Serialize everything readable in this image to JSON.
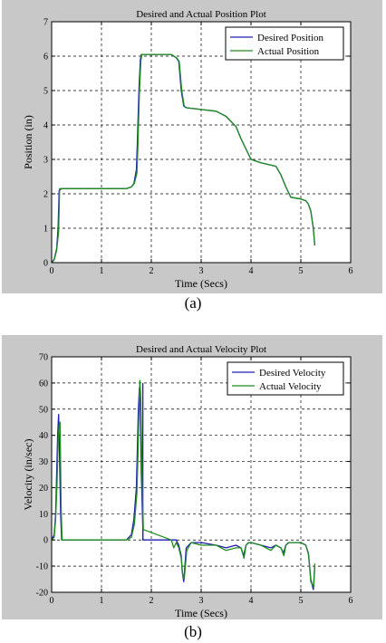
{
  "chart_data": [
    {
      "type": "line",
      "title": "Desired and Actual Position Plot",
      "xlabel": "Time (Secs)",
      "ylabel": "Position (in)",
      "xlim": [
        0,
        6
      ],
      "ylim": [
        0,
        7
      ],
      "xticks": [
        "0",
        "1",
        "2",
        "3",
        "4",
        "5",
        "6"
      ],
      "yticks": [
        "0",
        "1",
        "2",
        "3",
        "4",
        "5",
        "6",
        "7"
      ],
      "grid": true,
      "legend_position": "top-right",
      "series": [
        {
          "name": "Desired Position",
          "color": "#1f1fb4",
          "x": [
            0,
            0.05,
            0.1,
            0.13,
            0.15,
            0.2,
            1.5,
            1.6,
            1.65,
            1.7,
            1.72,
            1.75,
            1.78,
            1.8,
            2.0,
            2.4,
            2.5,
            2.55,
            2.6,
            2.65,
            2.7,
            3.0,
            3.3,
            3.5,
            3.7,
            3.8,
            3.9,
            4.0,
            4.2,
            4.5,
            4.6,
            4.7,
            4.8,
            5.0,
            5.1,
            5.15,
            5.2,
            5.25,
            5.28
          ],
          "y": [
            0,
            0.1,
            0.4,
            1.0,
            2.1,
            2.15,
            2.15,
            2.2,
            2.3,
            2.7,
            3.5,
            5.0,
            5.9,
            6.05,
            6.05,
            6.05,
            5.95,
            5.85,
            5.0,
            4.55,
            4.5,
            4.45,
            4.4,
            4.25,
            3.95,
            3.6,
            3.3,
            3.0,
            2.9,
            2.8,
            2.55,
            2.2,
            1.9,
            1.85,
            1.8,
            1.7,
            1.5,
            1.0,
            0.5
          ]
        },
        {
          "name": "Actual Position",
          "color": "#1f8c1f",
          "x": [
            0,
            0.05,
            0.1,
            0.14,
            0.16,
            0.2,
            1.5,
            1.6,
            1.66,
            1.71,
            1.73,
            1.76,
            1.79,
            1.81,
            2.0,
            2.4,
            2.51,
            2.56,
            2.61,
            2.66,
            2.71,
            3.0,
            3.3,
            3.5,
            3.7,
            3.8,
            3.9,
            4.0,
            4.2,
            4.5,
            4.6,
            4.7,
            4.8,
            5.0,
            5.1,
            5.15,
            5.2,
            5.25,
            5.28
          ],
          "y": [
            0,
            0.08,
            0.35,
            0.9,
            2.15,
            2.15,
            2.15,
            2.2,
            2.3,
            2.6,
            3.4,
            4.9,
            5.85,
            6.05,
            6.05,
            6.05,
            5.95,
            5.85,
            5.0,
            4.55,
            4.5,
            4.45,
            4.4,
            4.25,
            3.95,
            3.6,
            3.3,
            3.0,
            2.9,
            2.8,
            2.55,
            2.2,
            1.9,
            1.85,
            1.8,
            1.7,
            1.5,
            1.0,
            0.5
          ]
        }
      ]
    },
    {
      "type": "line",
      "title": "Desired and Actual Velocity Plot",
      "xlabel": "Time (Secs)",
      "ylabel": "Velocity (in/sec)",
      "xlim": [
        0,
        6
      ],
      "ylim": [
        -20,
        70
      ],
      "xticks": [
        "0",
        "1",
        "2",
        "3",
        "4",
        "5",
        "6"
      ],
      "yticks": [
        "-20",
        "-10",
        "0",
        "10",
        "20",
        "30",
        "40",
        "50",
        "60",
        "70"
      ],
      "grid": true,
      "legend_position": "top-right",
      "series": [
        {
          "name": "Desired Velocity",
          "color": "#1f1fb4",
          "x": [
            0,
            0.05,
            0.08,
            0.1,
            0.12,
            0.14,
            0.16,
            0.18,
            0.2,
            1.5,
            1.6,
            1.65,
            1.7,
            1.72,
            1.74,
            1.76,
            1.78,
            1.8,
            1.83,
            1.83,
            2.5,
            2.55,
            2.6,
            2.62,
            2.65,
            2.7,
            2.8,
            3.0,
            3.3,
            3.5,
            3.7,
            3.8,
            3.85,
            3.9,
            3.95,
            4.0,
            4.2,
            4.4,
            4.5,
            4.6,
            4.65,
            4.7,
            4.75,
            4.8,
            5.0,
            5.1,
            5.15,
            5.2,
            5.25,
            5.28
          ],
          "y": [
            0,
            2,
            10,
            25,
            40,
            48,
            30,
            10,
            0,
            0,
            2,
            8,
            20,
            35,
            50,
            58,
            50,
            25,
            5,
            0,
            0,
            -2,
            -6,
            -12,
            -16,
            -3,
            -1,
            -1,
            -2,
            -3,
            -2,
            -3,
            -6,
            -2,
            -1,
            -1,
            -2,
            -3,
            -2,
            -3,
            -5,
            -2,
            -1,
            -1,
            -1,
            -2,
            -5,
            -15,
            -19,
            -10
          ],
          "extra_vertical": {
            "x": 1.83,
            "from": 0,
            "to": 60
          }
        },
        {
          "name": "Actual Velocity",
          "color": "#1f8c1f",
          "x": [
            0,
            0.05,
            0.08,
            0.11,
            0.13,
            0.15,
            0.17,
            0.19,
            0.21,
            1.5,
            1.6,
            1.66,
            1.71,
            1.73,
            1.75,
            1.77,
            1.79,
            1.81,
            1.84,
            2.4,
            2.45,
            2.5,
            2.55,
            2.6,
            2.63,
            2.66,
            2.71,
            2.8,
            3.0,
            3.3,
            3.5,
            3.7,
            3.8,
            3.86,
            3.9,
            3.96,
            4.0,
            4.2,
            4.4,
            4.5,
            4.6,
            4.66,
            4.7,
            4.76,
            4.8,
            5.0,
            5.1,
            5.16,
            5.2,
            5.26,
            5.28
          ],
          "y": [
            0,
            1,
            8,
            22,
            38,
            44,
            45,
            12,
            0,
            0,
            1,
            6,
            18,
            32,
            48,
            61,
            55,
            28,
            4,
            0,
            -3,
            -1,
            -3,
            -7,
            -13,
            -15,
            -4,
            -1,
            -2,
            -2,
            -4,
            -3,
            -3,
            -7,
            -2,
            -1,
            -1,
            -2,
            -4,
            -2,
            -3,
            -6,
            -2,
            -1,
            -1,
            -1,
            -2,
            -6,
            -16,
            -18,
            -9
          ]
        }
      ]
    }
  ],
  "captions": {
    "a": "(a)",
    "b": "(b)"
  }
}
